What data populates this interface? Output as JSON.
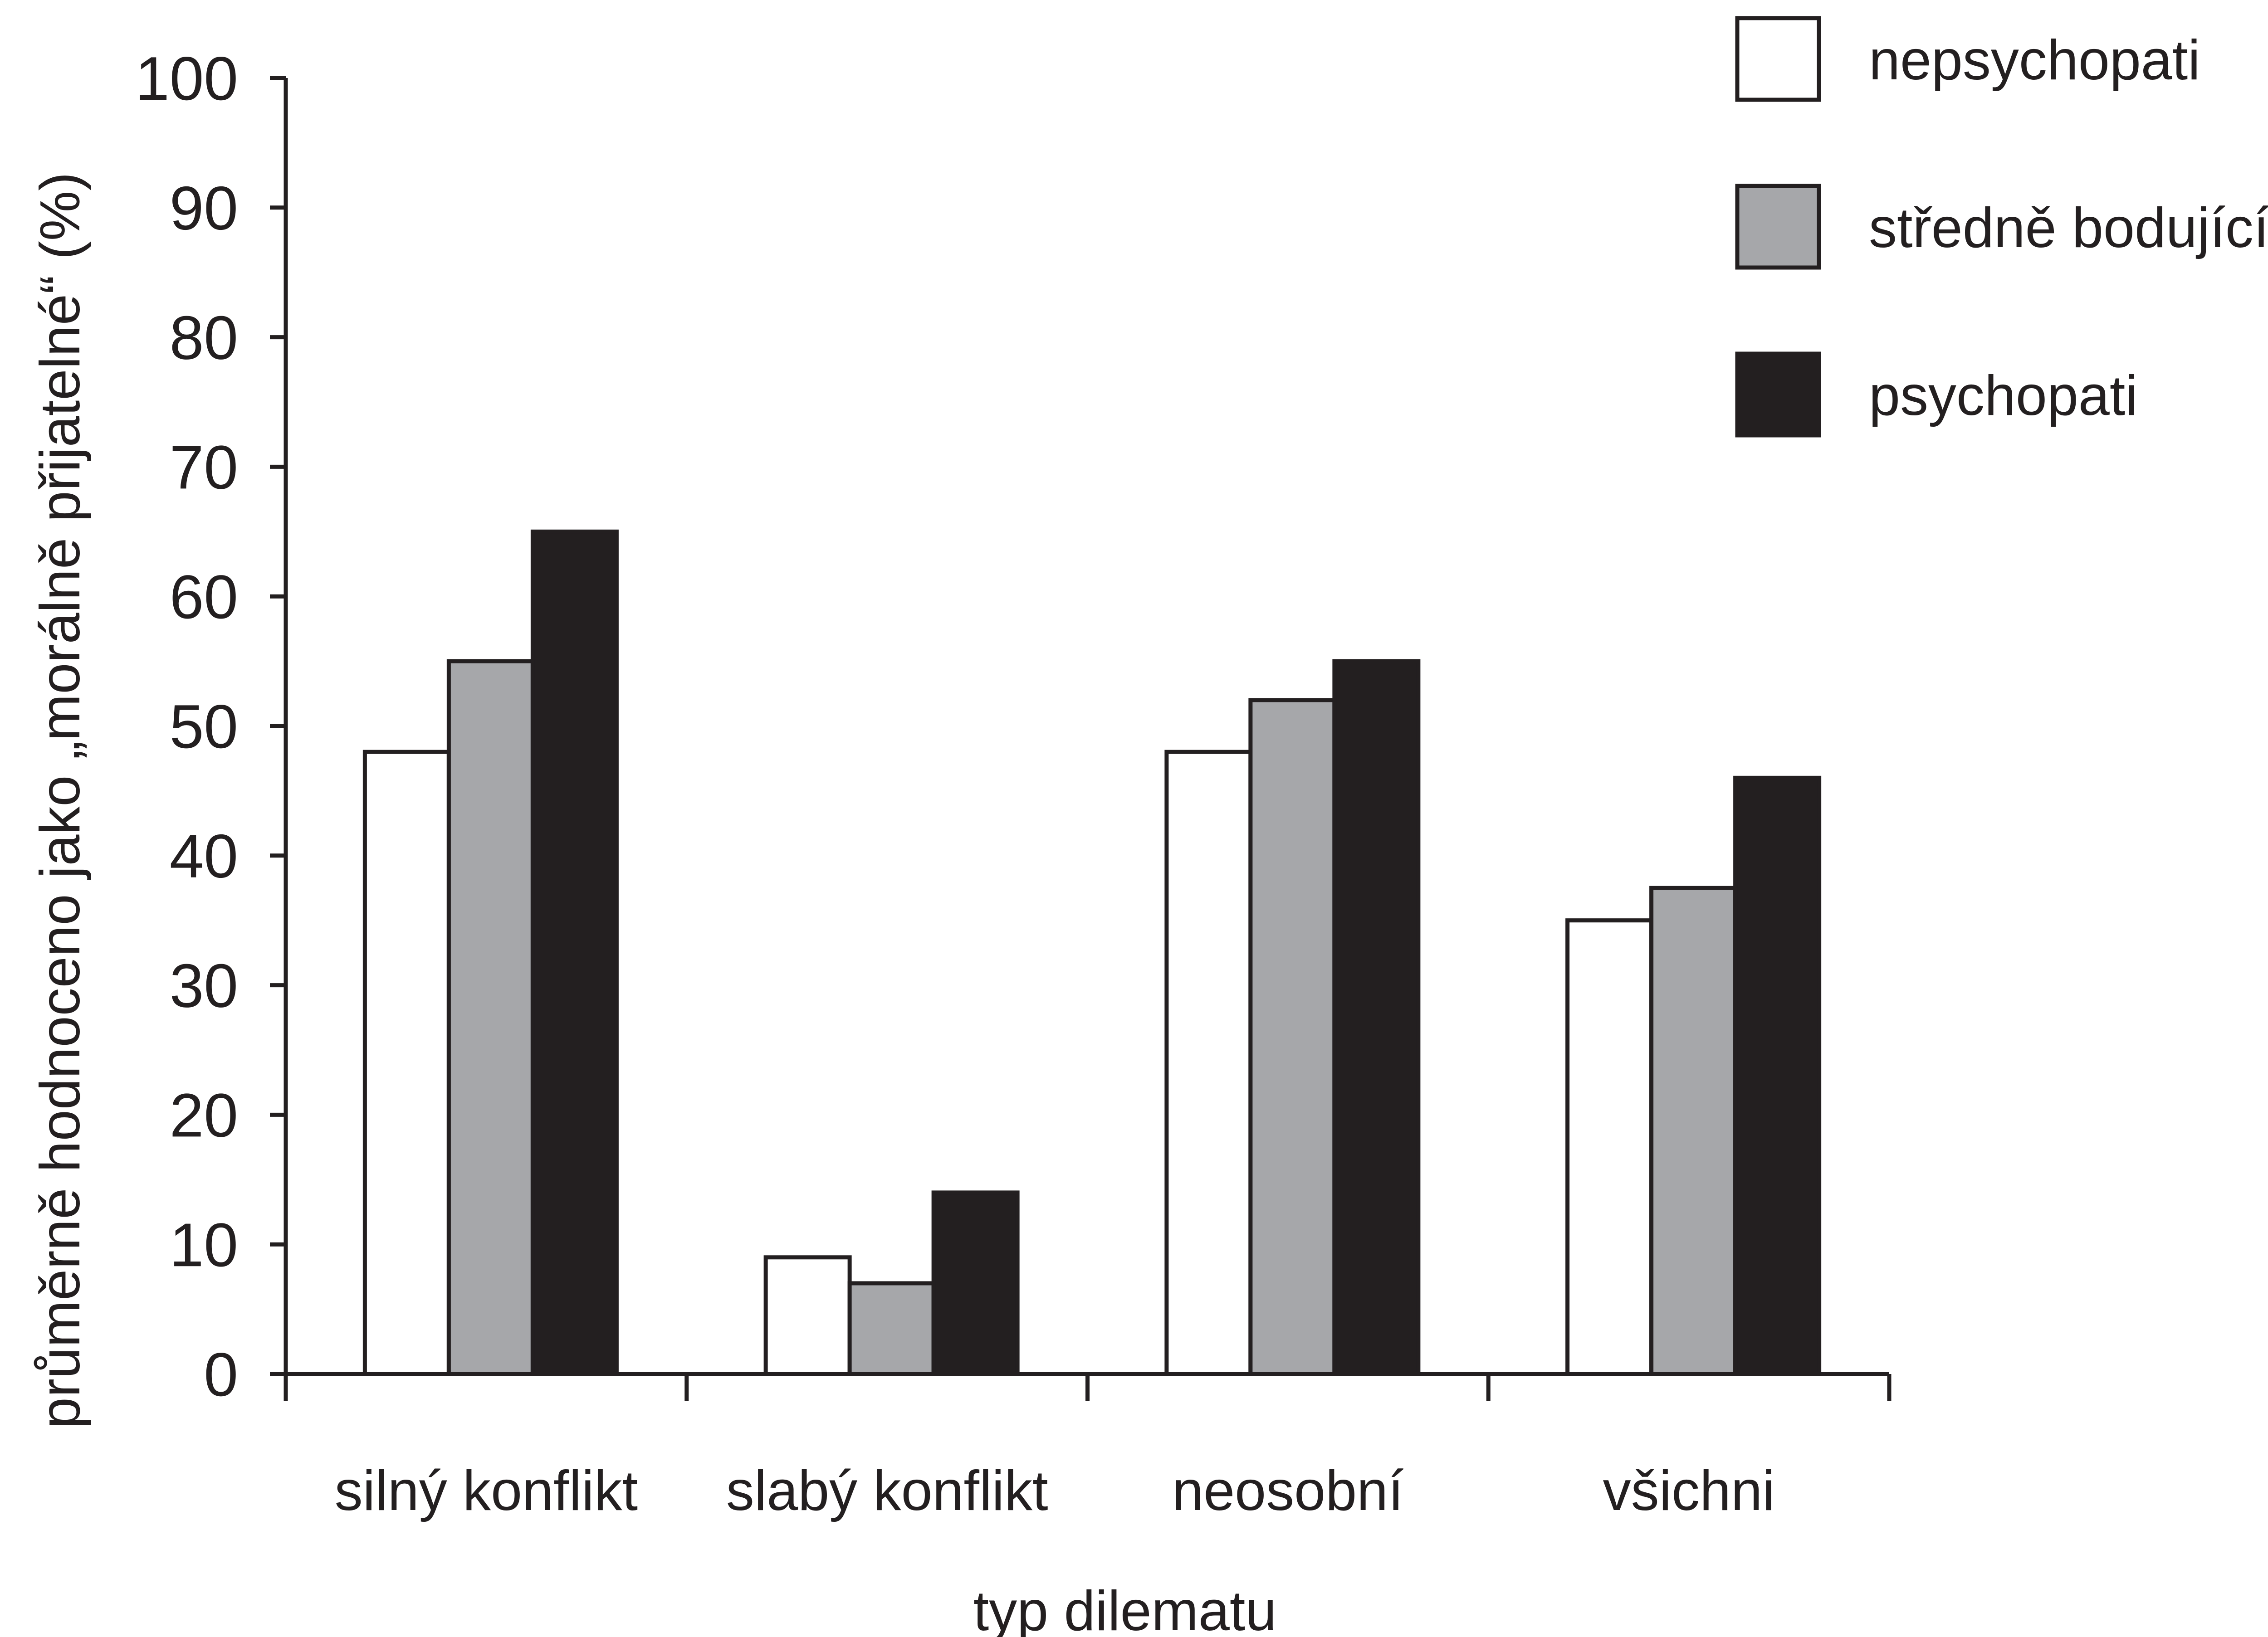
{
  "chart_data": {
    "type": "bar",
    "title": "",
    "xlabel": "typ dilematu",
    "ylabel": "průměrně hodnoceno jako „morálně přijatelné“ (%)",
    "ylim": [
      0,
      100
    ],
    "yticks": [
      0,
      10,
      20,
      30,
      40,
      50,
      60,
      70,
      80,
      90,
      100
    ],
    "grid": false,
    "legend_position": "top-right",
    "categories": [
      "silný konflikt",
      "slabý konflikt",
      "neosobní",
      "všichni"
    ],
    "series": [
      {
        "name": "nepsychopati",
        "color": "#ffffff",
        "values": [
          48,
          9,
          48,
          35
        ]
      },
      {
        "name": "středně bodující",
        "color": "#a6a7aa",
        "values": [
          55,
          7,
          52,
          37.5
        ]
      },
      {
        "name": "psychopati",
        "color": "#231f20",
        "values": [
          65,
          14,
          55,
          46
        ]
      }
    ]
  }
}
